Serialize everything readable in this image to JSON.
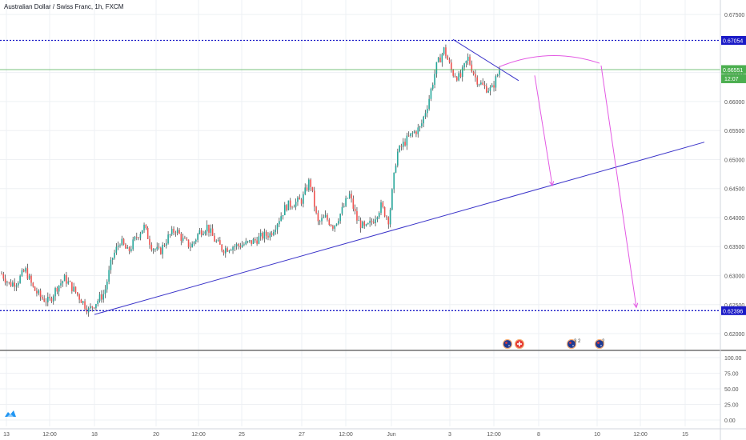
{
  "header": {
    "title": "Australian Dollar / Swiss Franc, 1h, FXCM"
  },
  "colors": {
    "up": "#26a69a",
    "down": "#ef5350",
    "wick": "#333333",
    "trendline": "#3a33c9",
    "level": "#1a1ac7",
    "forecast": "#e359e3",
    "current": "#4caf50",
    "grid": "#eef0f4"
  },
  "icons": {
    "logo": "tradingview-logo-icon"
  },
  "chart_data": {
    "type": "candlestick",
    "title": "Australian Dollar / Swiss Franc, 1h, FXCM",
    "ylim": [
      0.6178,
      0.6775
    ],
    "y_ticks": [
      "0.67500",
      "0.66500",
      "0.66000",
      "0.65500",
      "0.65000",
      "0.64500",
      "0.64000",
      "0.63500",
      "0.63000",
      "0.62500",
      "0.62000"
    ],
    "x_ticks": [
      "13",
      "12:00",
      "18",
      "20",
      "12:00",
      "25",
      "27",
      "12:00",
      "Jun",
      "3",
      "12:00",
      "8",
      "10",
      "12:00",
      "15"
    ],
    "price_labels": [
      {
        "name": "resistance",
        "value": 0.67054,
        "text": "0.67054"
      },
      {
        "name": "current",
        "value": 0.66551,
        "text": "0.66551"
      },
      {
        "name": "support",
        "value": 0.62396,
        "text": "0.62396"
      }
    ],
    "countdown": "12:07",
    "close_path": [
      0.6303,
      0.6285,
      0.629,
      0.631,
      0.6278,
      0.6262,
      0.6255,
      0.628,
      0.6295,
      0.6278,
      0.626,
      0.624,
      0.6255,
      0.627,
      0.633,
      0.636,
      0.634,
      0.6365,
      0.6385,
      0.635,
      0.634,
      0.6365,
      0.638,
      0.636,
      0.635,
      0.6375,
      0.6385,
      0.636,
      0.6345,
      0.635,
      0.6352,
      0.6355,
      0.636,
      0.6368,
      0.6372,
      0.6395,
      0.642,
      0.6425,
      0.643,
      0.6465,
      0.639,
      0.64,
      0.6385,
      0.641,
      0.644,
      0.6395,
      0.638,
      0.6395,
      0.642,
      0.6395,
      0.651,
      0.653,
      0.6545,
      0.6555,
      0.66,
      0.666,
      0.669,
      0.665,
      0.664,
      0.6675,
      0.664,
      0.6625,
      0.662,
      0.6655
    ],
    "oscillator": {
      "ticks": [
        "100.00",
        "75.00",
        "50.00",
        "25.00",
        "0.00"
      ],
      "ylim": [
        0,
        100
      ]
    },
    "events": [
      {
        "icon": "flag-au-icon",
        "count": ""
      },
      {
        "icon": "flag-ch-icon",
        "count": ""
      },
      {
        "icon": "flag-au-icon",
        "count": "3 2"
      },
      {
        "icon": "flag-au-icon",
        "count": "2"
      }
    ]
  }
}
